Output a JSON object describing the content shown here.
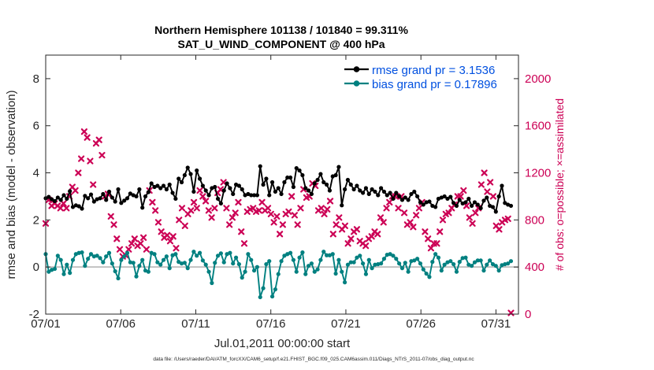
{
  "chart_data": {
    "type": "line",
    "title": [
      "Northern Hemisphere 101138 / 101840 = 99.311%",
      "SAT_U_WIND_COMPONENT @ 400 hPa"
    ],
    "xlabel": "Jul.01,2011 00:00:00 start",
    "ylabel_left": "rmse and bias (model - observation)",
    "ylabel_right": "# of obs: o=possible; ×=assimilated",
    "footer": "data file: /Users/raeder/DAI/ATM_forcXX/CAM6_setup/f.e21.FHIST_BGC.f09_025.CAM6assim.011/Diags_NTrS_2011-07/obs_diag_output.nc",
    "xlim": [
      0,
      31.5
    ],
    "ylim_left": [
      -2,
      9
    ],
    "ylim_right": [
      0,
      2200
    ],
    "x_ticks": [
      0,
      5,
      10,
      15,
      20,
      25,
      30
    ],
    "x_tick_labels": [
      "07/01",
      "07/06",
      "07/11",
      "07/16",
      "07/21",
      "07/26",
      "07/31"
    ],
    "y_ticks_left": [
      -2,
      0,
      2,
      4,
      6,
      8
    ],
    "y_ticks_right": [
      0,
      400,
      800,
      1200,
      1600,
      2000
    ],
    "legend": [
      {
        "label": "rmse grand pr = 3.1536",
        "color": "#000000"
      },
      {
        "label": "bias grand pr = 0.17896",
        "color": "#008080"
      }
    ],
    "colors": {
      "rmse": "#000000",
      "bias": "#008080",
      "obs": "#cc0055",
      "legend_text": "#0050e0",
      "zero_line": "#b0b0b0"
    },
    "series": [
      {
        "name": "rmse",
        "axis": "left",
        "values": [
          2.92,
          2.98,
          2.88,
          2.8,
          2.95,
          2.85,
          3.05,
          2.9,
          3.22,
          2.55,
          2.62,
          2.58,
          2.48,
          3.02,
          2.92,
          3.08,
          2.78,
          2.88,
          2.92,
          3.1,
          2.85,
          3.2,
          2.95,
          2.78,
          3.3,
          2.72,
          2.82,
          2.92,
          3.12,
          3.05,
          3.0,
          3.3,
          2.52,
          3.0,
          3.18,
          3.55,
          3.4,
          3.45,
          3.35,
          3.45,
          3.3,
          3.5,
          3.15,
          2.9,
          3.75,
          3.6,
          3.9,
          4.22,
          3.95,
          3.2,
          4.1,
          3.75,
          3.45,
          3.25,
          3.05,
          3.35,
          3.4,
          2.9,
          2.7,
          3.25,
          3.55,
          3.35,
          3.1,
          3.5,
          3.45,
          3.3,
          3.05,
          3.1,
          3.05,
          3.05,
          3.05,
          4.28,
          3.5,
          3.75,
          3.05,
          3.6,
          3.2,
          3.35,
          3.1,
          3.6,
          3.8,
          3.8,
          3.4,
          4.2,
          4.1,
          3.9,
          3.35,
          3.25,
          3.1,
          3.55,
          3.7,
          3.95,
          3.6,
          3.5,
          3.25,
          3.85,
          3.9,
          4.25,
          2.62,
          3.3,
          3.7,
          3.5,
          3.3,
          3.45,
          3.25,
          3.15,
          3.35,
          3.1,
          3.3,
          3.2,
          3.05,
          3.35,
          3.2,
          3.05,
          3.15,
          2.9,
          3.15,
          3.0,
          2.85,
          2.95,
          2.85,
          3.1,
          3.2,
          3.0,
          2.75,
          2.65,
          2.75,
          2.78,
          2.6,
          2.55,
          2.9,
          2.95,
          3.0,
          2.9,
          2.98,
          2.72,
          2.6,
          2.85,
          2.7,
          2.75,
          2.9,
          2.6,
          2.75,
          2.65,
          2.5,
          2.82,
          2.95,
          2.6,
          2.55,
          2.35,
          3.0,
          3.45,
          2.72,
          2.65,
          2.6
        ]
      },
      {
        "name": "bias",
        "axis": "left",
        "values": [
          0.55,
          -0.2,
          -0.12,
          -0.08,
          0.48,
          0.3,
          -0.3,
          0.1,
          -0.25,
          0.3,
          0.55,
          0.6,
          0.62,
          0.05,
          0.35,
          0.55,
          0.45,
          0.48,
          0.38,
          0.2,
          0.45,
          0.6,
          0.15,
          -0.18,
          -0.48,
          0.3,
          0.45,
          0.6,
          0.2,
          0.18,
          -0.4,
          0.05,
          0.3,
          -0.15,
          -0.2,
          0.6,
          0.55,
          0.2,
          0.1,
          0.3,
          0.45,
          -0.05,
          0.5,
          0.55,
          0.22,
          0.15,
          0.18,
          -0.05,
          0.3,
          0.65,
          0.48,
          0.6,
          0.28,
          0.1,
          -0.2,
          -0.68,
          0.18,
          0.48,
          0.58,
          0.2,
          0.55,
          0.6,
          0.15,
          0.4,
          0.12,
          -0.45,
          -0.2,
          0.55,
          0.3,
          -0.15,
          0.0,
          -1.28,
          -0.9,
          0.12,
          0.25,
          -1.25,
          -0.95,
          -0.3,
          0.25,
          0.48,
          0.55,
          0.6,
          0.3,
          -0.2,
          0.4,
          0.62,
          -0.3,
          0.05,
          0.15,
          -0.2,
          -0.1,
          0.3,
          0.65,
          0.5,
          0.5,
          0.55,
          -0.28,
          0.3,
          -0.2,
          -0.65,
          0.1,
          0.2,
          0.2,
          0.4,
          0.48,
          0.15,
          -0.3,
          0.3,
          -0.05,
          0.1,
          0.12,
          0.15,
          0.35,
          0.52,
          0.55,
          0.48,
          0.35,
          0.15,
          -0.05,
          0.18,
          -0.2,
          0.25,
          0.28,
          0.35,
          0.15,
          -0.1,
          -0.28,
          -0.42,
          0.22,
          0.55,
          0.4,
          -0.15,
          0.1,
          0.2,
          0.25,
          0.12,
          -0.2,
          0.22,
          0.38,
          0.4,
          0.1,
          0.05,
          0.2,
          0.28,
          0.28,
          -0.15,
          0.1,
          0.28,
          0.12,
          0.05,
          -0.15,
          0.08,
          0.12,
          0.15,
          0.25
        ]
      },
      {
        "name": "obs",
        "axis": "right",
        "values": [
          770,
          970,
          920,
          940,
          920,
          900,
          940,
          900,
          1000,
          1080,
          1050,
          1200,
          1320,
          1550,
          1500,
          1300,
          1100,
          1450,
          1480,
          1350,
          1000,
          1020,
          830,
          760,
          640,
          550,
          490,
          500,
          550,
          600,
          640,
          580,
          600,
          650,
          550,
          1050,
          950,
          880,
          780,
          700,
          650,
          670,
          620,
          660,
          560,
          800,
          900,
          750,
          850,
          880,
          950,
          900,
          1050,
          1000,
          960,
          880,
          820,
          900,
          1030,
          1060,
          1120,
          900,
          760,
          820,
          860,
          950,
          700,
          600,
          870,
          890,
          900,
          870,
          880,
          950,
          880,
          900,
          850,
          780,
          830,
          680,
          760,
          850,
          870,
          1000,
          840,
          760,
          900,
          1060,
          990,
          1000,
          1110,
          1090,
          880,
          900,
          850,
          890,
          960,
          680,
          760,
          820,
          720,
          750,
          600,
          640,
          700,
          720,
          620,
          600,
          580,
          640,
          660,
          700,
          680,
          820,
          780,
          900,
          950,
          1000,
          1000,
          900,
          1000,
          860,
          760,
          780,
          740,
          840,
          900,
          950,
          700,
          640,
          560,
          600,
          600,
          700,
          800,
          850,
          860,
          900,
          930,
          1000,
          1000,
          1050,
          920,
          820,
          770,
          860,
          900,
          1100,
          1200,
          1040,
          1120,
          1000,
          750,
          720,
          780,
          800,
          810,
          10
        ]
      }
    ]
  }
}
